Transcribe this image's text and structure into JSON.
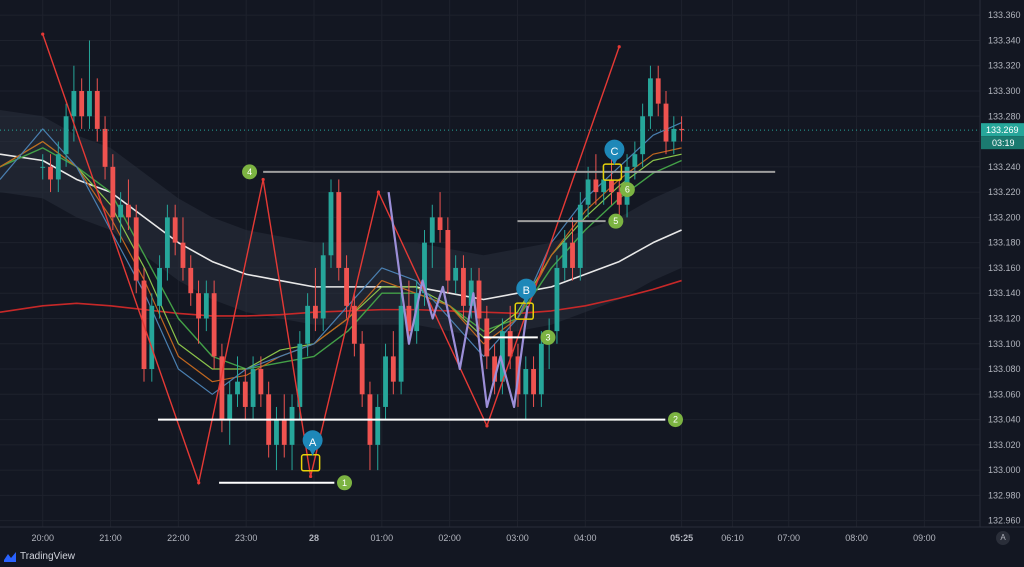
{
  "brand": {
    "name": "TradingView",
    "logo_icon": "tradingview-logo-icon"
  },
  "axis_button": {
    "label": "A"
  },
  "colors": {
    "background": "#131722",
    "grid": "#1e222d",
    "bull": "#26a69a",
    "bear": "#ef5350",
    "zigzag": "#e53935",
    "harmonic": "#9c8fd8",
    "ma_white": "#e8e8e8",
    "ma_red": "#c62828",
    "ma_green": "#43a047",
    "ma_lime": "#8bc34a",
    "ma_orange": "#c0661f",
    "ma_blue": "#4a7fb0",
    "level_white": "#ffffff",
    "level_gray": "#9e9e9e",
    "marker_blue": "#1e88b8",
    "marker_green": "#7cb342",
    "box_yellow": "#e6d10a",
    "price_tag": "#26a69a"
  },
  "chart_data": {
    "type": "candlestick",
    "y_ticks": [
      "133.360",
      "133.340",
      "133.320",
      "133.300",
      "133.280",
      "133.260",
      "133.240",
      "133.220",
      "133.200",
      "133.180",
      "133.160",
      "133.140",
      "133.120",
      "133.100",
      "133.080",
      "133.060",
      "133.040",
      "133.020",
      "133.000",
      "132.980",
      "132.960"
    ],
    "x_ticks": [
      {
        "label": "20:00",
        "t": 0
      },
      {
        "label": "21:00",
        "t": 1
      },
      {
        "label": "22:00",
        "t": 2
      },
      {
        "label": "23:00",
        "t": 3
      },
      {
        "label": "28",
        "t": 4
      },
      {
        "label": "01:00",
        "t": 5
      },
      {
        "label": "02:00",
        "t": 6
      },
      {
        "label": "03:00",
        "t": 7
      },
      {
        "label": "04:00",
        "t": 8
      },
      {
        "label": "05:25",
        "t": 9.42
      },
      {
        "label": "06:10",
        "t": 10.17
      },
      {
        "label": "07:00",
        "t": 11
      },
      {
        "label": "08:00",
        "t": 12
      },
      {
        "label": "09:00",
        "t": 13
      }
    ],
    "ylim": [
      132.955,
      133.372
    ],
    "xlim": [
      -0.63,
      13.82
    ],
    "current_price": "133.269",
    "countdown": "03:19",
    "candles_ohlc": [
      [
        133.24,
        133.25,
        133.23,
        133.24
      ],
      [
        133.24,
        133.25,
        133.22,
        133.23
      ],
      [
        133.23,
        133.26,
        133.22,
        133.25
      ],
      [
        133.25,
        133.29,
        133.24,
        133.28
      ],
      [
        133.28,
        133.32,
        133.26,
        133.3
      ],
      [
        133.3,
        133.31,
        133.27,
        133.28
      ],
      [
        133.28,
        133.34,
        133.27,
        133.3
      ],
      [
        133.3,
        133.31,
        133.26,
        133.27
      ],
      [
        133.27,
        133.28,
        133.23,
        133.24
      ],
      [
        133.24,
        133.25,
        133.19,
        133.2
      ],
      [
        133.2,
        133.22,
        133.18,
        133.21
      ],
      [
        133.21,
        133.23,
        133.19,
        133.2
      ],
      [
        133.2,
        133.21,
        133.14,
        133.15
      ],
      [
        133.15,
        133.16,
        133.07,
        133.08
      ],
      [
        133.08,
        133.14,
        133.07,
        133.13
      ],
      [
        133.13,
        133.17,
        133.12,
        133.16
      ],
      [
        133.16,
        133.21,
        133.15,
        133.2
      ],
      [
        133.2,
        133.21,
        133.17,
        133.18
      ],
      [
        133.18,
        133.2,
        133.15,
        133.16
      ],
      [
        133.16,
        133.17,
        133.13,
        133.14
      ],
      [
        133.14,
        133.15,
        133.1,
        133.12
      ],
      [
        133.12,
        133.15,
        133.11,
        133.14
      ],
      [
        133.14,
        133.15,
        133.08,
        133.09
      ],
      [
        133.09,
        133.1,
        133.03,
        133.04
      ],
      [
        133.04,
        133.07,
        133.02,
        133.06
      ],
      [
        133.06,
        133.09,
        133.05,
        133.07
      ],
      [
        133.07,
        133.08,
        133.04,
        133.05
      ],
      [
        133.05,
        133.09,
        133.04,
        133.08
      ],
      [
        133.08,
        133.09,
        133.05,
        133.06
      ],
      [
        133.06,
        133.07,
        133.01,
        133.02
      ],
      [
        133.02,
        133.05,
        133.0,
        133.04
      ],
      [
        133.04,
        133.06,
        133.01,
        133.02
      ],
      [
        133.02,
        133.06,
        133.0,
        133.05
      ],
      [
        133.05,
        133.11,
        133.04,
        133.1
      ],
      [
        133.1,
        133.14,
        133.09,
        133.13
      ],
      [
        133.13,
        133.16,
        133.11,
        133.12
      ],
      [
        133.12,
        133.18,
        133.11,
        133.17
      ],
      [
        133.17,
        133.23,
        133.16,
        133.22
      ],
      [
        133.22,
        133.23,
        133.15,
        133.16
      ],
      [
        133.16,
        133.17,
        133.12,
        133.13
      ],
      [
        133.13,
        133.14,
        133.09,
        133.1
      ],
      [
        133.1,
        133.11,
        133.05,
        133.06
      ],
      [
        133.06,
        133.07,
        133.0,
        133.02
      ],
      [
        133.02,
        133.06,
        133.0,
        133.05
      ],
      [
        133.05,
        133.1,
        133.04,
        133.09
      ],
      [
        133.09,
        133.11,
        133.06,
        133.07
      ],
      [
        133.07,
        133.14,
        133.06,
        133.13
      ],
      [
        133.13,
        133.15,
        133.1,
        133.11
      ],
      [
        133.11,
        133.15,
        133.1,
        133.14
      ],
      [
        133.14,
        133.19,
        133.13,
        133.18
      ],
      [
        133.18,
        133.21,
        133.16,
        133.2
      ],
      [
        133.2,
        133.22,
        133.18,
        133.19
      ],
      [
        133.19,
        133.2,
        133.14,
        133.15
      ],
      [
        133.15,
        133.17,
        133.14,
        133.16
      ],
      [
        133.16,
        133.17,
        133.12,
        133.13
      ],
      [
        133.13,
        133.16,
        133.12,
        133.15
      ],
      [
        133.15,
        133.16,
        133.11,
        133.12
      ],
      [
        133.12,
        133.13,
        133.08,
        133.09
      ],
      [
        133.09,
        133.1,
        133.06,
        133.07
      ],
      [
        133.07,
        133.12,
        133.06,
        133.11
      ],
      [
        133.11,
        133.13,
        133.08,
        133.09
      ],
      [
        133.09,
        133.1,
        133.05,
        133.06
      ],
      [
        133.06,
        133.09,
        133.04,
        133.08
      ],
      [
        133.08,
        133.09,
        133.05,
        133.06
      ],
      [
        133.06,
        133.11,
        133.05,
        133.1
      ],
      [
        133.1,
        133.12,
        133.08,
        133.11
      ],
      [
        133.11,
        133.17,
        133.1,
        133.16
      ],
      [
        133.16,
        133.19,
        133.15,
        133.18
      ],
      [
        133.18,
        133.2,
        133.15,
        133.16
      ],
      [
        133.16,
        133.22,
        133.15,
        133.21
      ],
      [
        133.21,
        133.24,
        133.2,
        133.23
      ],
      [
        133.23,
        133.25,
        133.21,
        133.22
      ],
      [
        133.22,
        133.24,
        133.21,
        133.23
      ],
      [
        133.23,
        133.25,
        133.21,
        133.22
      ],
      [
        133.22,
        133.23,
        133.2,
        133.21
      ],
      [
        133.21,
        133.25,
        133.2,
        133.24
      ],
      [
        133.24,
        133.26,
        133.23,
        133.25
      ],
      [
        133.25,
        133.29,
        133.24,
        133.28
      ],
      [
        133.28,
        133.32,
        133.27,
        133.31
      ],
      [
        133.31,
        133.32,
        133.28,
        133.29
      ],
      [
        133.29,
        133.3,
        133.25,
        133.26
      ],
      [
        133.26,
        133.28,
        133.25,
        133.27
      ],
      [
        133.27,
        133.28,
        133.26,
        133.269
      ]
    ],
    "moving_averages": [
      {
        "color": "ma_white",
        "width": 1.6,
        "points": [
          [
            -0.63,
            133.25
          ],
          [
            0,
            133.245
          ],
          [
            0.5,
            133.23
          ],
          [
            1,
            133.22
          ],
          [
            1.5,
            133.2
          ],
          [
            2,
            133.18
          ],
          [
            2.5,
            133.165
          ],
          [
            3,
            133.155
          ],
          [
            3.5,
            133.15
          ],
          [
            4,
            133.145
          ],
          [
            4.5,
            133.145
          ],
          [
            5,
            133.145
          ],
          [
            5.5,
            133.145
          ],
          [
            6,
            133.14
          ],
          [
            6.5,
            133.135
          ],
          [
            7,
            133.14
          ],
          [
            7.5,
            133.145
          ],
          [
            8,
            133.155
          ],
          [
            8.5,
            133.165
          ],
          [
            9,
            133.18
          ],
          [
            9.42,
            133.19
          ]
        ]
      },
      {
        "color": "ma_red",
        "width": 1.6,
        "points": [
          [
            -0.63,
            133.125
          ],
          [
            0,
            133.13
          ],
          [
            0.5,
            133.132
          ],
          [
            1,
            133.13
          ],
          [
            1.5,
            133.127
          ],
          [
            2,
            133.124
          ],
          [
            2.5,
            133.122
          ],
          [
            3,
            133.122
          ],
          [
            3.5,
            133.123
          ],
          [
            4,
            133.125
          ],
          [
            4.5,
            133.126
          ],
          [
            5,
            133.127
          ],
          [
            5.5,
            133.127
          ],
          [
            6,
            133.126
          ],
          [
            6.5,
            133.125
          ],
          [
            7,
            133.124
          ],
          [
            7.5,
            133.126
          ],
          [
            8,
            133.13
          ],
          [
            8.5,
            133.136
          ],
          [
            9,
            133.143
          ],
          [
            9.42,
            133.15
          ]
        ]
      },
      {
        "color": "ma_green",
        "width": 1.4,
        "points": [
          [
            -0.63,
            133.24
          ],
          [
            0,
            133.255
          ],
          [
            0.5,
            133.24
          ],
          [
            1,
            133.22
          ],
          [
            1.5,
            133.17
          ],
          [
            2,
            133.12
          ],
          [
            2.5,
            133.09
          ],
          [
            3,
            133.08
          ],
          [
            3.5,
            133.085
          ],
          [
            4,
            133.09
          ],
          [
            4.5,
            133.11
          ],
          [
            5,
            133.14
          ],
          [
            5.5,
            133.14
          ],
          [
            6,
            133.13
          ],
          [
            6.5,
            133.11
          ],
          [
            7,
            133.12
          ],
          [
            7.5,
            133.16
          ],
          [
            8,
            133.19
          ],
          [
            8.5,
            133.215
          ],
          [
            9,
            133.235
          ],
          [
            9.42,
            133.245
          ]
        ]
      },
      {
        "color": "ma_lime",
        "width": 1.2,
        "points": [
          [
            -0.63,
            133.24
          ],
          [
            0,
            133.26
          ],
          [
            0.5,
            133.24
          ],
          [
            1,
            133.21
          ],
          [
            1.5,
            133.16
          ],
          [
            2,
            133.1
          ],
          [
            2.5,
            133.08
          ],
          [
            3,
            133.08
          ],
          [
            3.5,
            133.095
          ],
          [
            4,
            133.1
          ],
          [
            4.5,
            133.12
          ],
          [
            5,
            133.145
          ],
          [
            5.5,
            133.145
          ],
          [
            6,
            133.13
          ],
          [
            6.5,
            133.105
          ],
          [
            7,
            133.125
          ],
          [
            7.5,
            133.17
          ],
          [
            8,
            133.2
          ],
          [
            8.5,
            133.225
          ],
          [
            9,
            133.245
          ],
          [
            9.42,
            133.25
          ]
        ]
      },
      {
        "color": "ma_orange",
        "width": 1.2,
        "points": [
          [
            -0.63,
            133.24
          ],
          [
            0,
            133.26
          ],
          [
            0.5,
            133.24
          ],
          [
            1,
            133.2
          ],
          [
            1.5,
            133.15
          ],
          [
            2,
            133.09
          ],
          [
            2.5,
            133.07
          ],
          [
            3,
            133.075
          ],
          [
            3.5,
            133.09
          ],
          [
            4,
            133.1
          ],
          [
            4.5,
            133.12
          ],
          [
            5,
            133.15
          ],
          [
            5.5,
            133.14
          ],
          [
            6,
            133.13
          ],
          [
            6.5,
            133.1
          ],
          [
            7,
            133.12
          ],
          [
            7.5,
            133.17
          ],
          [
            8,
            133.205
          ],
          [
            8.5,
            133.23
          ],
          [
            9,
            133.25
          ],
          [
            9.42,
            133.255
          ]
        ]
      },
      {
        "color": "ma_blue",
        "width": 1.2,
        "points": [
          [
            -0.63,
            133.23
          ],
          [
            0,
            133.27
          ],
          [
            0.5,
            133.24
          ],
          [
            1,
            133.19
          ],
          [
            1.5,
            133.14
          ],
          [
            2,
            133.08
          ],
          [
            2.5,
            133.06
          ],
          [
            3,
            133.08
          ],
          [
            3.5,
            133.09
          ],
          [
            4,
            133.1
          ],
          [
            4.5,
            133.13
          ],
          [
            5,
            133.16
          ],
          [
            5.5,
            133.15
          ],
          [
            6,
            133.12
          ],
          [
            6.5,
            133.09
          ],
          [
            7,
            133.12
          ],
          [
            7.5,
            133.18
          ],
          [
            8,
            133.215
          ],
          [
            8.5,
            133.24
          ],
          [
            9,
            133.265
          ],
          [
            9.42,
            133.275
          ]
        ]
      }
    ],
    "zigzag": [
      [
        0,
        133.345
      ],
      [
        2.3,
        132.99
      ],
      [
        3.25,
        133.23
      ],
      [
        3.95,
        132.995
      ],
      [
        4.95,
        133.22
      ],
      [
        6.55,
        133.035
      ],
      [
        8.5,
        133.335
      ]
    ],
    "harmonic": [
      [
        5.1,
        133.22
      ],
      [
        5.4,
        133.1
      ],
      [
        5.6,
        133.15
      ],
      [
        5.75,
        133.12
      ],
      [
        5.9,
        133.145
      ],
      [
        6.15,
        133.08
      ],
      [
        6.35,
        133.14
      ],
      [
        6.55,
        133.05
      ],
      [
        6.75,
        133.09
      ],
      [
        6.95,
        133.05
      ],
      [
        7.15,
        133.13
      ]
    ],
    "levels": [
      {
        "x1": 2.6,
        "x2": 4.3,
        "y": 132.99,
        "color": "level_white",
        "label": "1",
        "label_t": 4.45
      },
      {
        "x1": 1.7,
        "x2": 9.18,
        "y": 133.04,
        "color": "level_white",
        "label": "2",
        "label_t": 9.33
      },
      {
        "x1": 6.5,
        "x2": 7.3,
        "y": 133.105,
        "color": "level_white",
        "label": "3",
        "label_t": 7.45
      },
      {
        "x1": 7.0,
        "x2": 8.3,
        "y": 133.197,
        "color": "level_gray",
        "label": "5",
        "label_t": 8.45
      },
      {
        "x1": 3.25,
        "x2": 10.8,
        "y": 133.236,
        "color": "level_gray",
        "label": "6",
        "label_t": 8.62,
        "label_y": 133.222
      },
      {
        "x1": 3.25,
        "x2": 3.25,
        "y": 133.236,
        "color": "level_gray",
        "label": "4",
        "label_t": 3.05
      }
    ],
    "points": [
      {
        "label": "A",
        "t": 3.95,
        "y": 133.005
      },
      {
        "label": "B",
        "t": 7.1,
        "y": 133.125
      },
      {
        "label": "C",
        "t": 8.4,
        "y": 133.235
      }
    ]
  }
}
